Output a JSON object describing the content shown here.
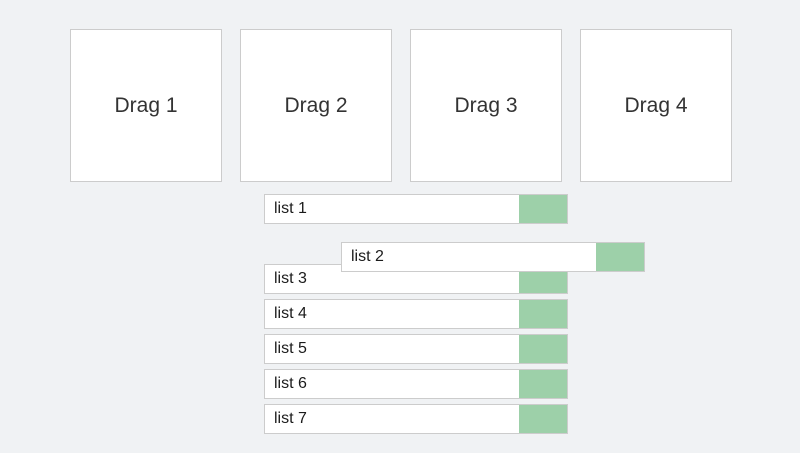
{
  "page": {
    "background": "#f0f2f4"
  },
  "drop_zones": [
    {
      "label": "Drag 1"
    },
    {
      "label": "Drag 2"
    },
    {
      "label": "Drag 3"
    },
    {
      "label": "Drag 4"
    }
  ],
  "list": {
    "items": [
      {
        "label": "list 1",
        "state": "idle"
      },
      {
        "label": "list 2",
        "state": "dragging"
      },
      {
        "label": "list 3",
        "state": "idle"
      },
      {
        "label": "list 4",
        "state": "idle"
      },
      {
        "label": "list 5",
        "state": "idle"
      },
      {
        "label": "list 6",
        "state": "idle"
      },
      {
        "label": "list 7",
        "state": "idle"
      }
    ]
  },
  "colors": {
    "handle_green": "#9dd0a9",
    "box_border": "#cccccc",
    "background": "#f0f2f4",
    "drop_label_text": "#333333",
    "list_label_text": "#1b1b1b"
  }
}
